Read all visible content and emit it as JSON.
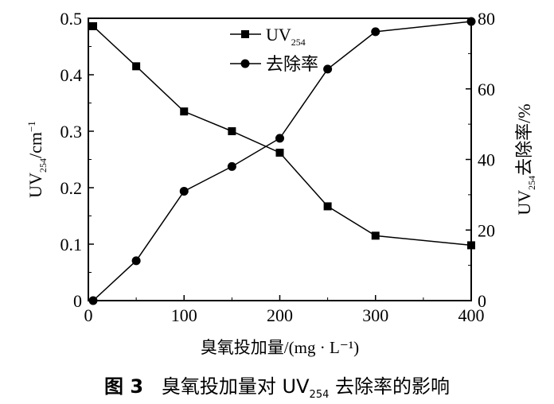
{
  "chart_data": {
    "type": "line",
    "xlabel": "臭氧投加量/(mg · L⁻¹)",
    "ylabel_left": {
      "main": "UV",
      "sub": "254",
      "rest": "/cm",
      "sup": "−1"
    },
    "ylabel_right": {
      "main": "UV",
      "sub": "254",
      "rest": "去除率/%"
    },
    "xlim": [
      0,
      400
    ],
    "ylim_left": [
      0,
      0.5
    ],
    "ylim_right": [
      0,
      80
    ],
    "xticks": [
      0,
      100,
      200,
      300,
      400
    ],
    "yticks_left": [
      0,
      0.1,
      0.2,
      0.3,
      0.4,
      0.5
    ],
    "yticks_right": [
      0,
      20,
      40,
      60,
      80
    ],
    "legend": "top-center",
    "x": [
      5,
      50,
      100,
      150,
      200,
      250,
      300,
      400
    ],
    "series": [
      {
        "name": "UV",
        "name_sub": "254",
        "marker": "square",
        "axis": "left",
        "values": [
          0.486,
          0.415,
          0.335,
          0.3,
          0.262,
          0.167,
          0.115,
          0.098
        ]
      },
      {
        "name": "去除率",
        "marker": "circle",
        "axis": "right",
        "values": [
          0,
          11.3,
          31.0,
          38.0,
          46.0,
          65.6,
          76.2,
          79.1
        ]
      }
    ]
  },
  "caption": {
    "prefix": "图 3",
    "text": "臭氧投加量对 UV",
    "sub": "254",
    "suffix": " 去除率的影响"
  }
}
